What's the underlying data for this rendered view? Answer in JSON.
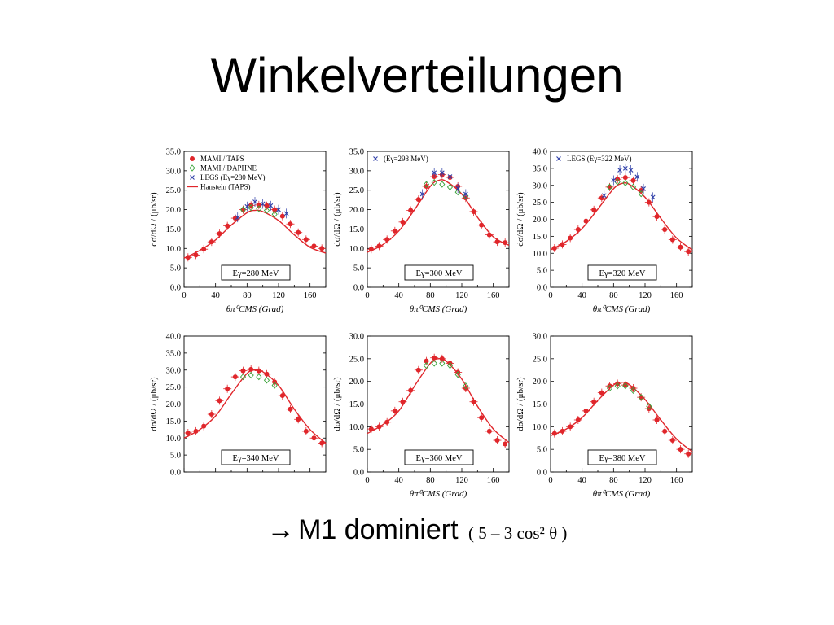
{
  "slide": {
    "title": "Winkelverteilungen",
    "bottom_arrow": "→",
    "bottom_main": "M1 dominiert",
    "bottom_formula": "( 5 – 3 cos² θ )"
  },
  "colors": {
    "mami_taps": "#e0262b",
    "mami_daphne": "#3aa33a",
    "legs": "#2e3ea8",
    "theory": "#e0262b"
  },
  "chart_data": [
    {
      "type": "scatter",
      "energy_label": "Eγ=280 MeV",
      "ylabel": "dσ/dΩ / (μb/sr)",
      "xlabel": "θπ⁰CMS (Grad)",
      "ylim": [
        0,
        35
      ],
      "yticks": [
        "0.0",
        "5.0",
        "10.0",
        "15.0",
        "20.0",
        "25.0",
        "30.0",
        "35.0"
      ],
      "xlim": [
        0,
        180
      ],
      "xticks": [
        "0",
        "40",
        "80",
        "120",
        "160"
      ],
      "legend": [
        "MAMI / TAPS",
        "MAMI / DAPHNE",
        "LEGS (Eγ=280 MeV)",
        "Hanstein (TAPS)"
      ],
      "series": [
        {
          "name": "MAMI / TAPS",
          "marker": "circle",
          "x": [
            5,
            15,
            25,
            35,
            45,
            55,
            65,
            75,
            85,
            95,
            105,
            115,
            125,
            135,
            145,
            155,
            165,
            175
          ],
          "y": [
            7.7,
            8.3,
            9.8,
            11.7,
            13.8,
            15.8,
            17.8,
            20.0,
            21.1,
            21.2,
            21.0,
            20.0,
            18.3,
            16.3,
            14.1,
            12.3,
            10.6,
            10.0
          ]
        },
        {
          "name": "MAMI / DAPHNE",
          "marker": "diamond",
          "x": [
            75,
            85,
            95,
            105,
            115
          ],
          "y": [
            20.0,
            20.5,
            20.2,
            19.8,
            18.8
          ]
        },
        {
          "name": "LEGS (Eγ=280 MeV)",
          "marker": "x",
          "x": [
            68,
            80,
            90,
            100,
            110,
            120,
            130
          ],
          "y": [
            18.0,
            20.8,
            22.0,
            21.5,
            21.0,
            20.0,
            19.0
          ]
        },
        {
          "name": "Hanstein (TAPS)",
          "marker": "line",
          "x": [
            0,
            20,
            40,
            60,
            80,
            90,
            100,
            120,
            140,
            160,
            180
          ],
          "y": [
            7.5,
            9.5,
            12.2,
            16.0,
            19.2,
            19.8,
            19.5,
            17.2,
            13.5,
            10.3,
            8.8
          ]
        }
      ]
    },
    {
      "type": "scatter",
      "energy_label": "Eγ=300 MeV",
      "ylabel": "dσ/dΩ / (μb/sr)",
      "xlabel": "θπ⁰CMS (Grad)",
      "ylim": [
        0,
        35
      ],
      "yticks": [
        "0.0",
        "5.0",
        "10.0",
        "15.0",
        "20.0",
        "25.0",
        "30.0",
        "35.0"
      ],
      "xlim": [
        0,
        180
      ],
      "xticks": [
        "0",
        "40",
        "80",
        "120",
        "160"
      ],
      "legend": [
        "(Eγ=298 MeV)"
      ],
      "series": [
        {
          "name": "MAMI / TAPS",
          "marker": "circle",
          "x": [
            5,
            15,
            25,
            35,
            45,
            55,
            65,
            75,
            85,
            95,
            105,
            115,
            125,
            135,
            145,
            155,
            165,
            175
          ],
          "y": [
            9.8,
            10.6,
            12.3,
            14.5,
            16.8,
            19.8,
            22.6,
            26.0,
            28.5,
            29.0,
            28.3,
            26.0,
            23.0,
            19.5,
            16.0,
            13.5,
            11.7,
            11.5
          ]
        },
        {
          "name": "MAMI / DAPHNE",
          "marker": "diamond",
          "x": [
            75,
            85,
            95,
            105,
            115,
            125
          ],
          "y": [
            26.5,
            27.0,
            26.5,
            25.8,
            24.5,
            23.5
          ]
        },
        {
          "name": "(Eγ=298 MeV)",
          "marker": "x",
          "x": [
            70,
            85,
            95,
            105,
            115,
            125
          ],
          "y": [
            24.0,
            29.5,
            29.5,
            28.5,
            25.5,
            24.0
          ]
        },
        {
          "name": "",
          "marker": "line",
          "x": [
            0,
            20,
            40,
            60,
            80,
            90,
            100,
            120,
            140,
            160,
            180
          ],
          "y": [
            9.0,
            11.0,
            14.5,
            20.0,
            26.0,
            27.5,
            27.3,
            24.0,
            18.0,
            13.0,
            10.8
          ]
        }
      ]
    },
    {
      "type": "scatter",
      "energy_label": "Eγ=320 MeV",
      "ylabel": "dσ/dΩ / (μb/sr)",
      "xlabel": "θπ⁰CMS (Grad)",
      "ylim": [
        0,
        40
      ],
      "yticks": [
        "0.0",
        "5.0",
        "10.0",
        "15.0",
        "20.0",
        "25.0",
        "30.0",
        "35.0",
        "40.0"
      ],
      "xlim": [
        0,
        180
      ],
      "xticks": [
        "0",
        "40",
        "80",
        "120",
        "160"
      ],
      "legend": [
        "LEGS (Eγ=322 MeV)"
      ],
      "series": [
        {
          "name": "MAMI / TAPS",
          "marker": "circle",
          "x": [
            5,
            15,
            25,
            35,
            45,
            55,
            65,
            75,
            85,
            95,
            105,
            115,
            125,
            135,
            145,
            155,
            165,
            175
          ],
          "y": [
            11.5,
            12.6,
            14.5,
            17.0,
            19.5,
            22.8,
            26.3,
            29.5,
            31.8,
            32.3,
            31.4,
            28.5,
            25.0,
            20.8,
            17.0,
            14.0,
            11.8,
            10.5
          ]
        },
        {
          "name": "MAMI / DAPHNE",
          "marker": "diamond",
          "x": [
            75,
            85,
            95,
            105,
            115
          ],
          "y": [
            29.5,
            31.0,
            30.7,
            29.5,
            27.5
          ]
        },
        {
          "name": "LEGS (Eγ=322 MeV)",
          "marker": "x",
          "x": [
            68,
            80,
            88,
            95,
            102,
            110,
            118,
            130
          ],
          "y": [
            27.0,
            31.5,
            34.5,
            35.0,
            34.5,
            32.5,
            29.0,
            26.5
          ]
        },
        {
          "name": "",
          "marker": "line",
          "x": [
            0,
            20,
            40,
            60,
            80,
            90,
            100,
            120,
            140,
            160,
            180
          ],
          "y": [
            11.0,
            13.5,
            17.3,
            23.0,
            29.0,
            30.5,
            30.3,
            26.5,
            20.3,
            14.5,
            11.0
          ]
        }
      ]
    },
    {
      "type": "scatter",
      "energy_label": "Eγ=340 MeV",
      "ylabel": "dσ/dΩ / (μb/sr)",
      "xlabel": "",
      "ylim": [
        0,
        40
      ],
      "yticks": [
        "0.0",
        "5.0",
        "10.0",
        "15.0",
        "20.0",
        "25.0",
        "30.0",
        "35.0",
        "40.0"
      ],
      "xlim": [
        0,
        180
      ],
      "xticks": [],
      "legend": [],
      "series": [
        {
          "name": "MAMI / TAPS",
          "marker": "circle",
          "x": [
            5,
            15,
            25,
            35,
            45,
            55,
            65,
            75,
            85,
            95,
            105,
            115,
            125,
            135,
            145,
            155,
            165,
            175
          ],
          "y": [
            11.5,
            12.0,
            13.5,
            17.0,
            21.0,
            24.5,
            28.0,
            29.8,
            30.2,
            29.8,
            28.8,
            26.5,
            22.5,
            18.5,
            15.5,
            12.0,
            10.0,
            8.5
          ]
        },
        {
          "name": "MAMI / DAPHNE",
          "marker": "diamond",
          "x": [
            75,
            85,
            95,
            105,
            115
          ],
          "y": [
            28.0,
            28.5,
            28.0,
            27.0,
            25.5
          ]
        },
        {
          "name": "",
          "marker": "line",
          "x": [
            0,
            20,
            40,
            60,
            80,
            90,
            100,
            120,
            140,
            160,
            180
          ],
          "y": [
            10.0,
            12.5,
            16.5,
            23.0,
            29.0,
            30.0,
            29.5,
            25.5,
            18.5,
            12.5,
            8.5
          ]
        }
      ]
    },
    {
      "type": "scatter",
      "energy_label": "Eγ=360 MeV",
      "ylabel": "dσ/dΩ / (μb/sr)",
      "xlabel": "θπ⁰CMS (Grad)",
      "ylim": [
        0,
        30
      ],
      "yticks": [
        "0.0",
        "5.0",
        "10.0",
        "15.0",
        "20.0",
        "25.0",
        "30.0"
      ],
      "xlim": [
        0,
        180
      ],
      "xticks": [
        "0",
        "40",
        "80",
        "120",
        "160"
      ],
      "legend": [],
      "series": [
        {
          "name": "MAMI / TAPS",
          "marker": "circle",
          "x": [
            5,
            15,
            25,
            35,
            45,
            55,
            65,
            75,
            85,
            95,
            105,
            115,
            125,
            135,
            145,
            155,
            165,
            175
          ],
          "y": [
            9.5,
            10.0,
            11.0,
            13.5,
            15.5,
            18.0,
            22.5,
            24.5,
            25.2,
            25.0,
            24.0,
            22.0,
            18.5,
            15.5,
            12.0,
            9.0,
            7.0,
            6.2
          ]
        },
        {
          "name": "MAMI / DAPHNE",
          "marker": "diamond",
          "x": [
            75,
            85,
            95,
            105,
            115,
            125
          ],
          "y": [
            23.5,
            24.0,
            24.0,
            23.5,
            21.5,
            19.0
          ]
        },
        {
          "name": "",
          "marker": "line",
          "x": [
            0,
            20,
            40,
            60,
            80,
            90,
            100,
            120,
            140,
            160,
            180
          ],
          "y": [
            8.5,
            10.5,
            13.5,
            19.0,
            24.0,
            25.0,
            24.5,
            20.5,
            14.5,
            9.5,
            6.5
          ]
        }
      ]
    },
    {
      "type": "scatter",
      "energy_label": "Eγ=380 MeV",
      "ylabel": "dσ/dΩ / (μb/sr)",
      "xlabel": "θπ⁰CMS (Grad)",
      "ylim": [
        0,
        30
      ],
      "yticks": [
        "0.0",
        "5.0",
        "10.0",
        "15.0",
        "20.0",
        "25.0",
        "30.0"
      ],
      "xlim": [
        0,
        180
      ],
      "xticks": [
        "0",
        "40",
        "80",
        "120",
        "160"
      ],
      "legend": [],
      "series": [
        {
          "name": "MAMI / TAPS",
          "marker": "circle",
          "x": [
            5,
            15,
            25,
            35,
            45,
            55,
            65,
            75,
            85,
            95,
            105,
            115,
            125,
            135,
            145,
            155,
            165,
            175
          ],
          "y": [
            8.5,
            9.0,
            10.0,
            11.5,
            13.5,
            15.5,
            17.5,
            19.0,
            19.5,
            19.2,
            18.5,
            16.5,
            14.0,
            11.5,
            9.0,
            7.0,
            5.0,
            4.0
          ]
        },
        {
          "name": "MAMI / DAPHNE",
          "marker": "diamond",
          "x": [
            75,
            85,
            95,
            105,
            115,
            125
          ],
          "y": [
            18.5,
            19.0,
            19.0,
            18.0,
            16.5,
            14.5
          ]
        },
        {
          "name": "",
          "marker": "line",
          "x": [
            0,
            20,
            40,
            60,
            80,
            90,
            100,
            120,
            140,
            160,
            180
          ],
          "y": [
            8.0,
            9.5,
            12.0,
            15.8,
            19.2,
            19.8,
            19.3,
            16.0,
            11.5,
            7.3,
            4.5
          ]
        }
      ]
    }
  ]
}
